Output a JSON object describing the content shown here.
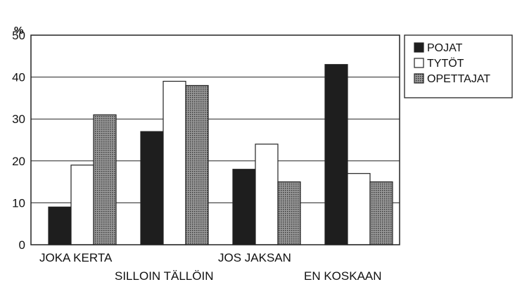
{
  "chart_data": {
    "type": "bar",
    "categories": [
      "JOKA KERTA",
      "SILLOIN TÄLLÖIN",
      "JOS JAKSAN",
      "EN KOSKAAN"
    ],
    "series": [
      {
        "name": "POJAT",
        "values": [
          9,
          27,
          18,
          43
        ],
        "color": "#1e1e1e"
      },
      {
        "name": "TYTÖT",
        "values": [
          19,
          39,
          24,
          17
        ],
        "color": "#ffffff"
      },
      {
        "name": "OPETTAJAT",
        "values": [
          31,
          38,
          15,
          15
        ],
        "color": "#7a7a7a"
      }
    ],
    "ylabel": "%",
    "ylim": [
      0,
      50
    ],
    "yticks": [
      0,
      10,
      20,
      30,
      40,
      50
    ],
    "grid": true,
    "legend_position": "right"
  }
}
